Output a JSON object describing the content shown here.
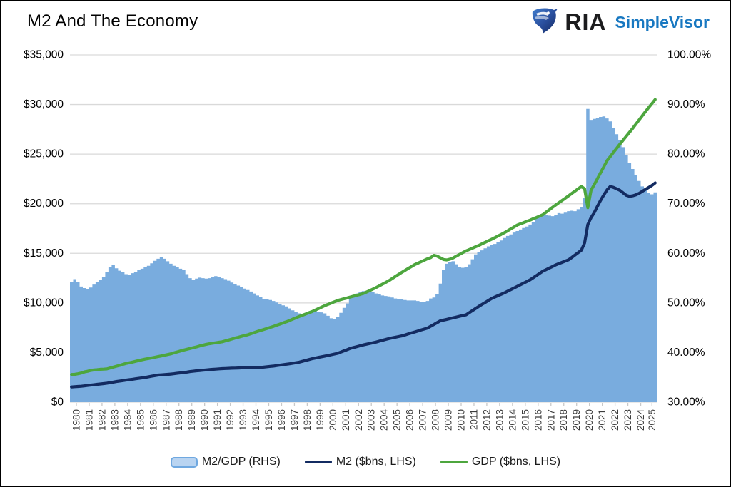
{
  "header": {
    "title": "M2 And The Economy",
    "brand": {
      "ria": "RIA",
      "simplevisor": "SimpleVisor",
      "simplevisor_color": "#1878c1"
    }
  },
  "chart_data": {
    "type": "area",
    "subtype": "quarterly step area with two smooth lines",
    "start_year": 1980,
    "points_per_year": 4,
    "x_tick_labels": [
      "1980",
      "1981",
      "1982",
      "1983",
      "1984",
      "1985",
      "1986",
      "1987",
      "1988",
      "1989",
      "1990",
      "1991",
      "1992",
      "1993",
      "1994",
      "1995",
      "1996",
      "1997",
      "1998",
      "1999",
      "2000",
      "2001",
      "2002",
      "2003",
      "2004",
      "2005",
      "2006",
      "2007",
      "2008",
      "2009",
      "2010",
      "2011",
      "2012",
      "2013",
      "2014",
      "2015",
      "2016",
      "2017",
      "2018",
      "2019",
      "2020",
      "2021",
      "2022",
      "2023",
      "2024",
      "2025"
    ],
    "left_axis": {
      "title": "",
      "min": 0,
      "max": 35000,
      "tick_labels": [
        "$35,000",
        "$30,000",
        "$25,000",
        "$20,000",
        "$15,000",
        "$10,000",
        "$5,000",
        "$0"
      ]
    },
    "right_axis": {
      "title": "",
      "min": 30,
      "max": 100,
      "tick_labels": [
        "100.00%",
        "90.00%",
        "80.00%",
        "70.00%",
        "60.00%",
        "50.00%",
        "40.00%",
        "30.00%"
      ]
    },
    "grid": true,
    "legend_position": "bottom-center",
    "colors": {
      "area_fill": "#79acde",
      "m2_line": "#132b61",
      "gdp_line": "#4da63e",
      "gridline": "#d9d9d9",
      "tick_text": "#3c3c3c"
    },
    "series": [
      {
        "name": "M2/GDP (RHS)",
        "type": "area",
        "axis": "right",
        "unit": "%",
        "values": [
          54.2,
          54.8,
          54.2,
          53.3,
          53.0,
          52.8,
          53.1,
          53.7,
          54.2,
          54.6,
          55.3,
          56.3,
          57.3,
          57.6,
          57.0,
          56.5,
          56.2,
          55.8,
          55.7,
          56.0,
          56.3,
          56.6,
          56.9,
          57.2,
          57.5,
          58.0,
          58.5,
          58.9,
          59.2,
          58.9,
          58.4,
          57.9,
          57.5,
          57.2,
          56.9,
          56.6,
          55.8,
          55.0,
          54.6,
          54.9,
          55.1,
          55.0,
          54.9,
          55.0,
          55.2,
          55.4,
          55.2,
          55.0,
          54.8,
          54.5,
          54.1,
          53.8,
          53.5,
          53.2,
          52.9,
          52.6,
          52.3,
          51.9,
          51.5,
          51.2,
          50.8,
          50.7,
          50.6,
          50.4,
          50.1,
          49.8,
          49.5,
          49.3,
          48.9,
          48.5,
          48.2,
          47.9,
          47.7,
          47.7,
          47.9,
          48.3,
          48.4,
          48.2,
          48.1,
          47.9,
          47.4,
          46.9,
          46.8,
          47.1,
          48.0,
          49.0,
          49.9,
          51.1,
          51.6,
          51.9,
          52.2,
          52.4,
          52.4,
          52.5,
          52.2,
          51.9,
          51.7,
          51.5,
          51.4,
          51.3,
          51.1,
          50.9,
          50.8,
          50.7,
          50.6,
          50.5,
          50.5,
          50.5,
          50.4,
          50.2,
          50.2,
          50.4,
          50.9,
          51.1,
          51.8,
          53.9,
          56.6,
          57.9,
          58.3,
          58.4,
          57.8,
          57.2,
          57.1,
          57.3,
          57.8,
          58.8,
          59.8,
          60.3,
          60.6,
          61.0,
          61.4,
          61.7,
          61.9,
          62.2,
          62.6,
          63.1,
          63.5,
          63.8,
          64.2,
          64.5,
          64.8,
          65.1,
          65.4,
          65.8,
          66.3,
          67.0,
          67.5,
          67.7,
          67.8,
          67.6,
          67.5,
          67.8,
          68.1,
          68.0,
          68.2,
          68.5,
          68.6,
          68.5,
          68.9,
          69.3,
          71.2,
          89.1,
          86.9,
          87.1,
          87.3,
          87.5,
          87.6,
          87.2,
          86.6,
          85.3,
          84.0,
          82.8,
          81.4,
          79.8,
          78.3,
          77.0,
          75.8,
          74.6,
          73.5,
          72.8,
          72.2,
          71.9,
          72.3
        ]
      },
      {
        "name": "M2 ($bns, LHS)",
        "type": "line",
        "axis": "left",
        "unit": "$bns",
        "values": [
          1530,
          1560,
          1580,
          1600,
          1640,
          1680,
          1720,
          1755,
          1795,
          1835,
          1870,
          1910,
          1965,
          2020,
          2075,
          2125,
          2170,
          2220,
          2265,
          2310,
          2355,
          2400,
          2450,
          2495,
          2555,
          2615,
          2675,
          2730,
          2755,
          2780,
          2805,
          2830,
          2870,
          2915,
          2955,
          2995,
          3035,
          3080,
          3120,
          3160,
          3190,
          3220,
          3250,
          3280,
          3305,
          3330,
          3355,
          3380,
          3395,
          3410,
          3420,
          3430,
          3440,
          3455,
          3465,
          3480,
          3485,
          3490,
          3495,
          3500,
          3535,
          3570,
          3605,
          3640,
          3685,
          3730,
          3775,
          3820,
          3870,
          3925,
          3975,
          4030,
          4120,
          4205,
          4290,
          4380,
          4445,
          4510,
          4575,
          4640,
          4710,
          4780,
          4850,
          4920,
          5050,
          5175,
          5300,
          5430,
          5515,
          5600,
          5685,
          5770,
          5840,
          5915,
          5985,
          6060,
          6150,
          6235,
          6325,
          6410,
          6480,
          6545,
          6615,
          6680,
          6780,
          6875,
          6975,
          7070,
          7170,
          7270,
          7370,
          7470,
          7650,
          7830,
          8010,
          8190,
          8270,
          8345,
          8425,
          8500,
          8575,
          8650,
          8725,
          8800,
          9010,
          9225,
          9435,
          9650,
          9850,
          10050,
          10250,
          10450,
          10590,
          10735,
          10875,
          11020,
          11180,
          11345,
          11505,
          11670,
          11835,
          12000,
          12165,
          12330,
          12550,
          12765,
          12985,
          13200,
          13360,
          13520,
          13680,
          13840,
          13970,
          14095,
          14225,
          14350,
          14590,
          14835,
          15075,
          15320,
          16050,
          17900,
          18600,
          19100,
          19750,
          20350,
          20900,
          21400,
          21740,
          21650,
          21500,
          21350,
          21100,
          20850,
          20750,
          20800,
          20900,
          21050,
          21250,
          21450,
          21650,
          21850,
          22100
        ]
      },
      {
        "name": "GDP ($bns, LHS)",
        "type": "line",
        "axis": "left",
        "unit": "$bns",
        "values": [
          2790,
          2800,
          2860,
          2930,
          3050,
          3110,
          3200,
          3250,
          3270,
          3310,
          3330,
          3350,
          3440,
          3530,
          3620,
          3700,
          3810,
          3900,
          3970,
          4040,
          4120,
          4200,
          4270,
          4340,
          4400,
          4460,
          4530,
          4590,
          4660,
          4730,
          4800,
          4870,
          4970,
          5070,
          5160,
          5250,
          5330,
          5410,
          5490,
          5570,
          5670,
          5750,
          5830,
          5890,
          5940,
          5990,
          6040,
          6090,
          6180,
          6270,
          6360,
          6460,
          6540,
          6630,
          6720,
          6800,
          6910,
          7020,
          7130,
          7230,
          7330,
          7430,
          7540,
          7640,
          7760,
          7870,
          7990,
          8100,
          8230,
          8370,
          8500,
          8640,
          8760,
          8880,
          9010,
          9130,
          9280,
          9430,
          9580,
          9730,
          9860,
          9990,
          10120,
          10250,
          10340,
          10430,
          10510,
          10600,
          10690,
          10780,
          10860,
          10950,
          11100,
          11250,
          11400,
          11560,
          11730,
          11900,
          12070,
          12250,
          12460,
          12670,
          12880,
          13090,
          13280,
          13480,
          13670,
          13860,
          14010,
          14160,
          14300,
          14450,
          14570,
          14800,
          14720,
          14550,
          14380,
          14340,
          14420,
          14540,
          14720,
          14900,
          15070,
          15240,
          15380,
          15520,
          15660,
          15800,
          15960,
          16110,
          16270,
          16420,
          16580,
          16750,
          16910,
          17080,
          17270,
          17470,
          17660,
          17850,
          17980,
          18100,
          18230,
          18350,
          18490,
          18620,
          18760,
          18900,
          19150,
          19390,
          19640,
          19880,
          20110,
          20340,
          20570,
          20800,
          21040,
          21280,
          21510,
          21750,
          21500,
          19600,
          21350,
          21930,
          22530,
          23140,
          23740,
          24350,
          24760,
          25180,
          25590,
          26000,
          26400,
          26800,
          27200,
          27600,
          28030,
          28450,
          28880,
          29300,
          29700,
          30100,
          30500
        ]
      }
    ],
    "legend": [
      {
        "label": "M2/GDP (RHS)"
      },
      {
        "label": "M2 ($bns, LHS)"
      },
      {
        "label": "GDP ($bns, LHS)"
      }
    ]
  }
}
